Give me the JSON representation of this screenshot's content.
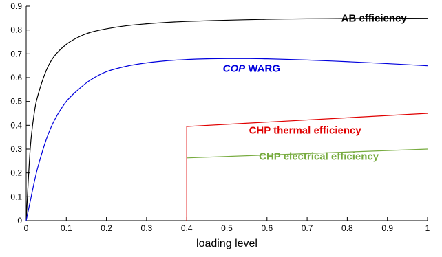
{
  "chart_data": {
    "type": "line",
    "title": "",
    "xlabel": "loading level",
    "ylabel": "",
    "xlim": [
      0,
      1
    ],
    "ylim": [
      0,
      0.9
    ],
    "xticks": [
      0,
      0.1,
      0.2,
      0.3,
      0.4,
      0.5,
      0.6,
      0.7,
      0.8,
      0.9,
      1
    ],
    "yticks": [
      0,
      0.1,
      0.2,
      0.3,
      0.4,
      0.5,
      0.6,
      0.7,
      0.8,
      0.9
    ],
    "xtick_labels": [
      "0",
      "0.1",
      "0.2",
      "0.3",
      "0.4",
      "0.5",
      "0.6",
      "0.7",
      "0.8",
      "0.9",
      "1"
    ],
    "ytick_labels": [
      "0",
      "0.1",
      "0.2",
      "0.3",
      "0.4",
      "0.5",
      "0.6",
      "0.7",
      "0.8",
      "0.9"
    ],
    "grid": false,
    "legend": "none",
    "series": [
      {
        "name": "AB efficiency",
        "label_parts": [
          {
            "text": "AB efficiency",
            "italic": false
          }
        ],
        "color": "#000000",
        "x": [
          0,
          0.01,
          0.02,
          0.03,
          0.05,
          0.07,
          0.1,
          0.13,
          0.16,
          0.2,
          0.25,
          0.3,
          0.35,
          0.4,
          0.5,
          0.6,
          0.7,
          0.8,
          0.9,
          1.0
        ],
        "y": [
          0,
          0.3,
          0.45,
          0.53,
          0.63,
          0.69,
          0.74,
          0.77,
          0.79,
          0.805,
          0.818,
          0.826,
          0.832,
          0.836,
          0.841,
          0.845,
          0.847,
          0.848,
          0.849,
          0.849
        ]
      },
      {
        "name": "COP WARG",
        "label_parts": [
          {
            "text": "COP",
            "italic": true
          },
          {
            "text": " WARG",
            "italic": false
          }
        ],
        "color": "#0000dd",
        "x": [
          0,
          0.01,
          0.02,
          0.03,
          0.05,
          0.07,
          0.1,
          0.13,
          0.16,
          0.2,
          0.25,
          0.3,
          0.35,
          0.4,
          0.45,
          0.5,
          0.55,
          0.6,
          0.7,
          0.8,
          0.9,
          1.0
        ],
        "y": [
          0,
          0.08,
          0.16,
          0.23,
          0.34,
          0.42,
          0.5,
          0.55,
          0.59,
          0.625,
          0.648,
          0.662,
          0.671,
          0.676,
          0.679,
          0.68,
          0.68,
          0.679,
          0.674,
          0.667,
          0.659,
          0.65
        ]
      },
      {
        "name": "CHP thermal efficiency",
        "label_parts": [
          {
            "text": "CHP thermal efficiency",
            "italic": false
          }
        ],
        "color": "#e00000",
        "x": [
          0.4,
          0.4,
          1.0
        ],
        "y": [
          0,
          0.395,
          0.45
        ]
      },
      {
        "name": "CHP electrical efficiency",
        "label_parts": [
          {
            "text": "CHP electrical efficiency",
            "italic": false
          }
        ],
        "color": "#77ab3f",
        "x": [
          0.4,
          1.0
        ],
        "y": [
          0.263,
          0.3
        ]
      }
    ],
    "annotations": [
      {
        "series": 0,
        "x": 0.785,
        "y": 0.835,
        "anchor": "start"
      },
      {
        "series": 1,
        "x": 0.49,
        "y": 0.625,
        "anchor": "start"
      },
      {
        "series": 2,
        "x": 0.555,
        "y": 0.365,
        "anchor": "start"
      },
      {
        "series": 3,
        "x": 0.58,
        "y": 0.255,
        "anchor": "start"
      }
    ]
  }
}
